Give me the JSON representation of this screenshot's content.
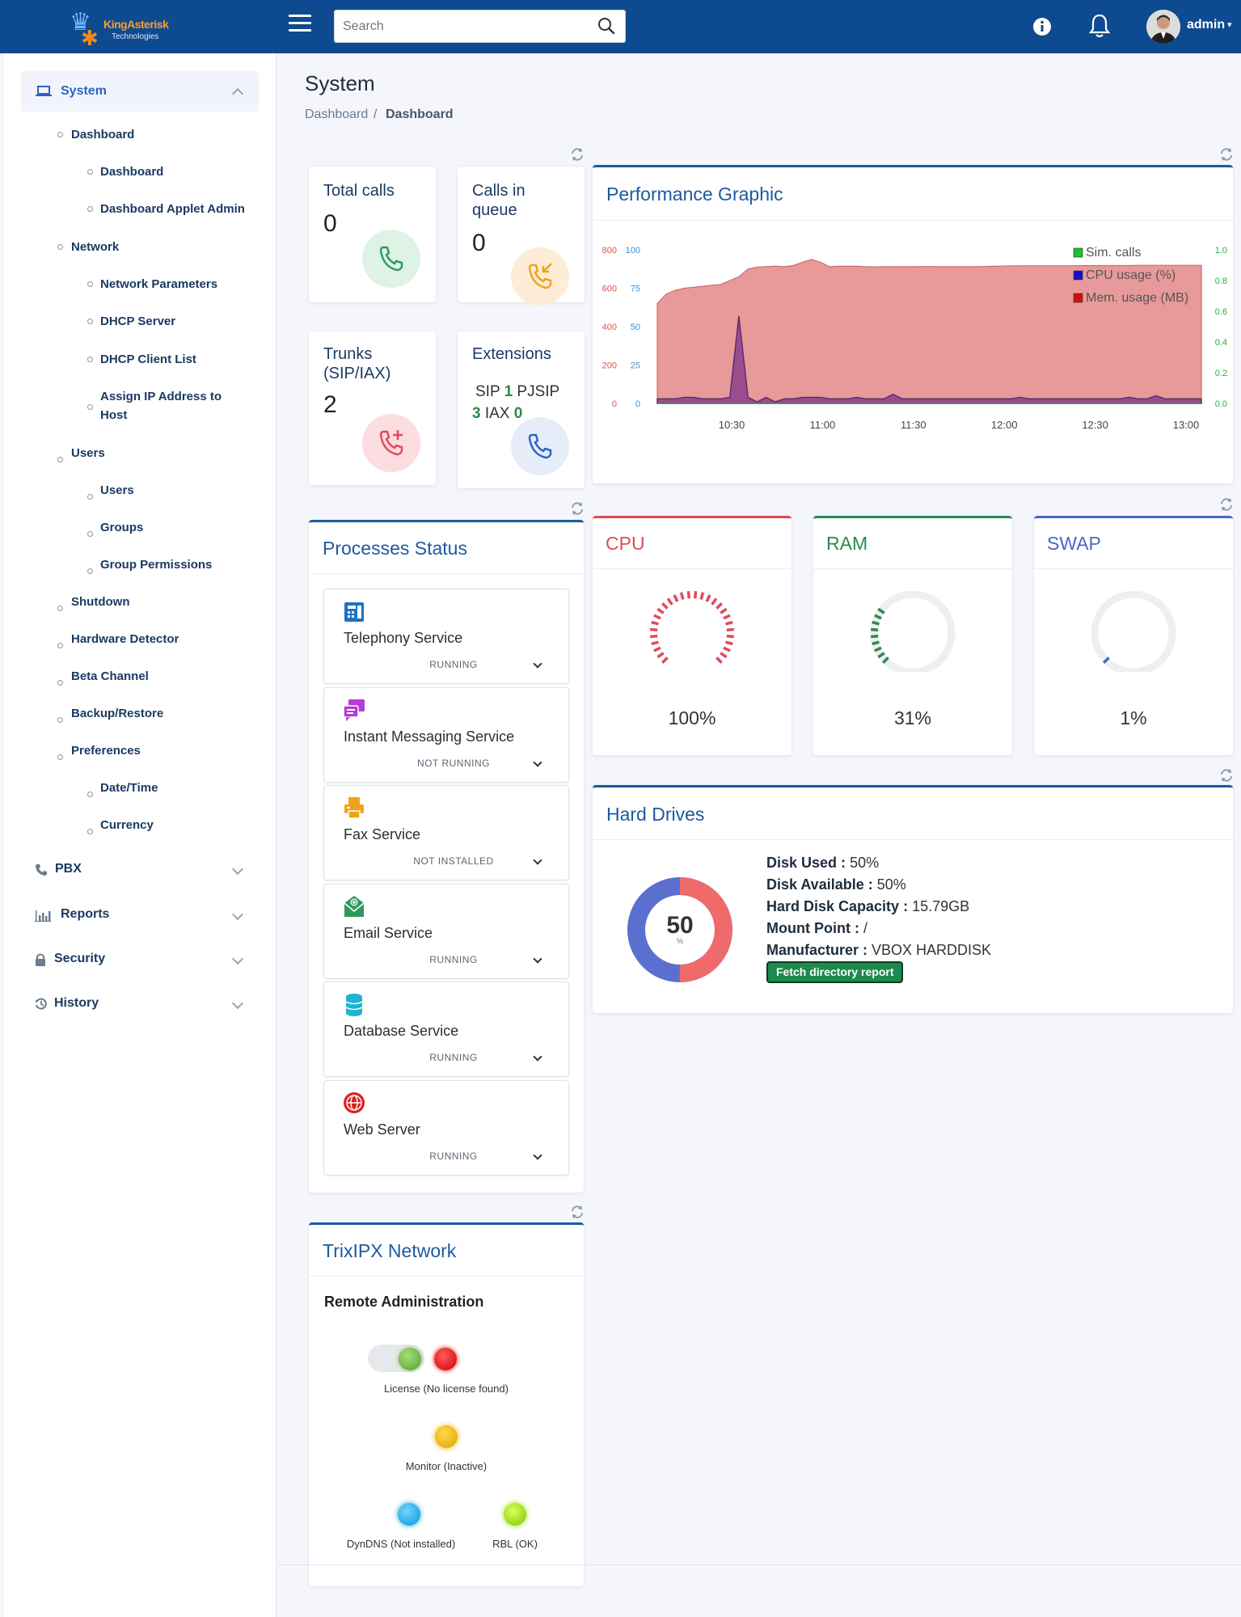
{
  "app": {
    "brand_name": "KingAsterisk",
    "brand_sub": "Technologies",
    "search_placeholder": "Search",
    "user_name": "admin"
  },
  "sidebar": {
    "system_label": "System",
    "items": [
      {
        "label": "Dashboard",
        "level": 1
      },
      {
        "label": "Dashboard",
        "level": 2
      },
      {
        "label": "Dashboard Applet Admin",
        "level": 2
      },
      {
        "label": "Network",
        "level": 1
      },
      {
        "label": "Network Parameters",
        "level": 2
      },
      {
        "label": "DHCP Server",
        "level": 2
      },
      {
        "label": "DHCP Client List",
        "level": 2
      },
      {
        "label": "Assign IP Address to",
        "level": 2
      },
      {
        "label": "Host",
        "level": 2
      },
      {
        "label": "Users",
        "level": 1
      },
      {
        "label": "Users",
        "level": 2
      },
      {
        "label": "Groups",
        "level": 2
      },
      {
        "label": "Group Permissions",
        "level": 2
      },
      {
        "label": "Shutdown",
        "level": 1
      },
      {
        "label": "Hardware Detector",
        "level": 1
      },
      {
        "label": "Beta Channel",
        "level": 1
      },
      {
        "label": "Backup/Restore",
        "level": 1
      },
      {
        "label": "Preferences",
        "level": 1
      },
      {
        "label": "Date/Time",
        "level": 2
      },
      {
        "label": "Currency",
        "level": 2
      }
    ],
    "sections": [
      {
        "label": "PBX",
        "icon": "phone-icon"
      },
      {
        "label": "Reports",
        "icon": "bar-chart-icon"
      },
      {
        "label": "Security",
        "icon": "lock-icon"
      },
      {
        "label": "History",
        "icon": "history-icon"
      }
    ]
  },
  "page": {
    "title": "System",
    "breadcrumb": [
      "Dashboard",
      "Dashboard"
    ],
    "breadcrumb_sep": "/"
  },
  "stats": {
    "total_calls": {
      "title": "Total calls",
      "value": "0",
      "color": "#2e9e5b"
    },
    "calls_in_queue": {
      "title_1": "Calls in",
      "title_2": "queue",
      "value": "0",
      "color": "#f0a21c"
    },
    "trunks": {
      "title_1": "Trunks",
      "title_2": "(SIP/IAX)",
      "value": "2",
      "color": "#e04a5a"
    },
    "extensions": {
      "title": "Extensions",
      "sip_label": "SIP",
      "sip_value": "1",
      "pjsip_label": "PJSIP",
      "pjsip_value": "3",
      "iax_label": "IAX",
      "iax_value": "0",
      "color": "#2d63c8"
    }
  },
  "performance": {
    "title": "Performance Graphic"
  },
  "chart_data": {
    "type": "area",
    "title": "Performance Graphic",
    "x_ticks": [
      "10:30",
      "11:00",
      "11:30",
      "12:00",
      "12:30",
      "13:00"
    ],
    "y_left_outer": {
      "ticks": [
        0,
        200,
        400,
        600,
        800
      ],
      "color": "#d9534f"
    },
    "y_left_inner": {
      "ticks": [
        0,
        25,
        50,
        75,
        100
      ],
      "color": "#3a8fd8"
    },
    "y_right": {
      "ticks": [
        "0.0",
        "0.2",
        "0.4",
        "0.6",
        "0.8",
        "1.0"
      ],
      "color": "#22b04b"
    },
    "legend_position": "top-right",
    "series": [
      {
        "name": "Sim. calls",
        "color": "#1fbf2f",
        "axis": "right",
        "values": [
          0,
          0,
          0,
          0,
          0,
          0,
          0,
          0,
          0,
          0,
          0,
          0,
          0,
          0,
          0,
          0,
          0,
          0,
          0,
          0,
          0,
          0,
          0,
          0,
          0,
          0,
          0,
          0,
          0,
          0,
          0,
          0,
          0,
          0,
          0,
          0,
          0,
          0,
          0,
          0,
          0,
          0,
          0,
          0,
          0,
          0,
          0,
          0,
          0,
          0,
          0,
          0,
          0,
          0,
          0,
          0,
          0,
          0,
          0,
          0,
          0
        ]
      },
      {
        "name": "CPU usage (%)",
        "color": "#1010c8",
        "axis": "left_inner",
        "values": [
          3,
          3,
          3,
          4,
          4,
          3,
          3,
          3,
          4,
          57,
          4,
          1,
          4,
          1,
          3,
          3,
          4,
          4,
          4,
          3,
          3,
          3,
          4,
          3,
          3,
          3,
          6,
          3,
          3,
          3,
          3,
          3,
          3,
          3,
          3,
          3,
          3,
          3,
          3,
          3,
          4,
          3,
          3,
          3,
          3,
          3,
          3,
          3,
          3,
          3,
          3,
          3,
          4,
          3,
          3,
          5,
          3,
          3,
          3,
          3,
          3
        ]
      },
      {
        "name": "Mem. usage (MB)",
        "color": "#d01010",
        "axis": "left_outer",
        "values": [
          520,
          570,
          590,
          600,
          605,
          610,
          615,
          620,
          640,
          660,
          700,
          710,
          712,
          715,
          712,
          718,
          735,
          750,
          735,
          712,
          714,
          715,
          714,
          712,
          711,
          712,
          712,
          712,
          712,
          713,
          713,
          712,
          712,
          712,
          712,
          712,
          713,
          714,
          715,
          716,
          716,
          717,
          717,
          717,
          717,
          717,
          717,
          718,
          718,
          718,
          718,
          718,
          718,
          719,
          719,
          719,
          719,
          719,
          719,
          719,
          719
        ]
      }
    ]
  },
  "processes": {
    "title": "Processes Status",
    "items": [
      {
        "name": "Telephony Service",
        "status": "RUNNING",
        "icon": "telephone-icon",
        "color": "#1e72c6"
      },
      {
        "name": "Instant Messaging Service",
        "status": "NOT RUNNING",
        "icon": "chat-icon",
        "color": "#b63bd8"
      },
      {
        "name": "Fax Service",
        "status": "NOT INSTALLED",
        "icon": "fax-icon",
        "color": "#f2a21a"
      },
      {
        "name": "Email Service",
        "status": "RUNNING",
        "icon": "envelope-icon",
        "color": "#2d9a5a"
      },
      {
        "name": "Database Service",
        "status": "RUNNING",
        "icon": "database-icon",
        "color": "#1fb5d0"
      },
      {
        "name": "Web Server",
        "status": "RUNNING",
        "icon": "globe-icon",
        "color": "#e02020"
      }
    ]
  },
  "gauges": [
    {
      "title": "CPU",
      "value_text": "100%",
      "fraction": 1.0,
      "color": "#e04a5a"
    },
    {
      "title": "RAM",
      "value_text": "31%",
      "fraction": 0.31,
      "color": "#2b8a52"
    },
    {
      "title": "SWAP",
      "value_text": "1%",
      "fraction": 0.01,
      "color": "#4a67c9"
    }
  ],
  "hard_drives": {
    "title": "Hard Drives",
    "donut_value": "50",
    "donut_unit": "%",
    "used_fraction": 0.5,
    "used_color": "#ef6b6b",
    "free_color": "#5b6fcf",
    "disk_used_label": "Disk Used :",
    "disk_used_value": "50%",
    "disk_available_label": "Disk Available :",
    "disk_available_value": "50%",
    "capacity_label": "Hard Disk Capacity :",
    "capacity_value": "15.79GB",
    "mount_label": "Mount Point :",
    "mount_value": "/",
    "manufacturer_label": "Manufacturer :",
    "manufacturer_value": "VBOX HARDDISK",
    "fetch_button": "Fetch directory report"
  },
  "trixipx": {
    "title": "TrixIPX Network",
    "subtitle": "Remote Administration",
    "license_label": "License (No license found)",
    "monitor_label": "Monitor (Inactive)",
    "dyndns_label": "DynDNS (Not installed)",
    "rbl_label": "RBL (OK)"
  }
}
